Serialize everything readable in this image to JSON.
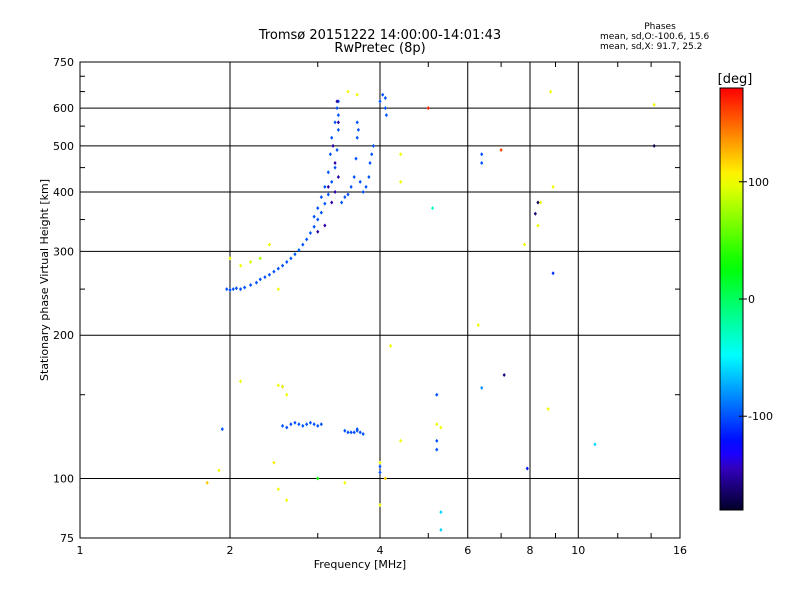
{
  "chart_data": {
    "type": "scatter",
    "title": "Tromsø 20151222 14:00:00-14:01:43",
    "subtitle": "RwPretec (8p)",
    "xlabel": "Frequency [MHz]",
    "ylabel": "Stationary phase Virtual Height [km]",
    "x_scale": "log",
    "y_scale": "log",
    "xlim": [
      1,
      16
    ],
    "ylim": [
      75,
      750
    ],
    "x_ticks": [
      "1",
      "2",
      "4",
      "6",
      "8",
      "10",
      "16"
    ],
    "x_tick_values": [
      1,
      2,
      4,
      6,
      8,
      10,
      16
    ],
    "y_ticks": [
      "75",
      "100",
      "200",
      "300",
      "400",
      "500",
      "600",
      "750"
    ],
    "y_tick_values": [
      75,
      100,
      200,
      300,
      400,
      500,
      600,
      750
    ],
    "grid": true,
    "phases_box": {
      "title": "Phases",
      "line1": "mean, sd,O:-100.6, 15.6",
      "line2": "mean, sd,X:  91.7, 25.2"
    },
    "colorbar": {
      "label": "[deg]",
      "ticks": [
        "100",
        "0",
        "-100"
      ],
      "tick_values": [
        100,
        0,
        -100
      ],
      "range": [
        -180,
        180
      ]
    },
    "series": [
      {
        "points": [
          [
            1.97,
            250,
            -100
          ],
          [
            2.0,
            249,
            -100
          ],
          [
            2.03,
            250,
            -100
          ],
          [
            2.06,
            251,
            -100
          ],
          [
            2.1,
            250,
            -100
          ],
          [
            2.14,
            252,
            -100
          ],
          [
            2.2,
            255,
            -100
          ],
          [
            2.26,
            258,
            -100
          ],
          [
            2.3,
            262,
            -100
          ],
          [
            2.35,
            265,
            -100
          ],
          [
            2.4,
            268,
            -100
          ],
          [
            2.45,
            272,
            -100
          ],
          [
            2.5,
            276,
            -100
          ],
          [
            2.55,
            280,
            -100
          ],
          [
            2.6,
            285,
            -100
          ],
          [
            2.65,
            290,
            -100
          ],
          [
            2.7,
            296,
            -100
          ],
          [
            2.75,
            302,
            -90
          ],
          [
            2.8,
            310,
            -100
          ],
          [
            2.85,
            318,
            -100
          ],
          [
            2.9,
            328,
            -100
          ],
          [
            2.95,
            338,
            -100
          ],
          [
            3.0,
            350,
            -100
          ],
          [
            3.05,
            362,
            -100
          ],
          [
            3.1,
            378,
            -100
          ],
          [
            3.15,
            395,
            -100
          ],
          [
            3.2,
            420,
            -100
          ],
          [
            3.25,
            450,
            -100
          ],
          [
            3.28,
            490,
            -100
          ],
          [
            3.3,
            540,
            -100
          ],
          [
            3.3,
            580,
            -100
          ],
          [
            3.3,
            620,
            -100
          ],
          [
            3.28,
            600,
            -100
          ],
          [
            3.25,
            560,
            -100
          ],
          [
            3.2,
            520,
            -100
          ],
          [
            3.18,
            480,
            -100
          ],
          [
            3.15,
            440,
            -100
          ],
          [
            3.1,
            410,
            -100
          ],
          [
            3.05,
            390,
            -100
          ],
          [
            3.0,
            370,
            -100
          ],
          [
            2.95,
            355,
            -100
          ],
          [
            3.35,
            380,
            -100
          ],
          [
            3.4,
            390,
            -100
          ],
          [
            3.45,
            395,
            -100
          ],
          [
            3.5,
            410,
            -100
          ],
          [
            3.55,
            430,
            -100
          ],
          [
            3.58,
            470,
            -100
          ],
          [
            3.6,
            520,
            -100
          ],
          [
            3.6,
            560,
            -100
          ],
          [
            3.62,
            540,
            -100
          ],
          [
            3.65,
            420,
            -100
          ],
          [
            3.7,
            400,
            -100
          ],
          [
            3.75,
            410,
            -100
          ],
          [
            3.8,
            430,
            -100
          ],
          [
            3.82,
            460,
            -100
          ],
          [
            3.85,
            480,
            -100
          ],
          [
            3.88,
            500,
            -100
          ],
          [
            4.0,
            620,
            -100
          ],
          [
            4.05,
            640,
            -100
          ],
          [
            4.1,
            630,
            -100
          ],
          [
            4.1,
            600,
            -100
          ],
          [
            4.12,
            580,
            -100
          ],
          [
            3.2,
            380,
            -150
          ],
          [
            3.25,
            400,
            -150
          ],
          [
            3.15,
            410,
            -150
          ],
          [
            3.3,
            430,
            -150
          ],
          [
            3.25,
            460,
            -150
          ],
          [
            3.22,
            500,
            -150
          ],
          [
            3.3,
            560,
            -150
          ],
          [
            3.28,
            620,
            -150
          ],
          [
            3.1,
            340,
            -150
          ],
          [
            3.0,
            330,
            -150
          ],
          [
            2.65,
            130,
            -100
          ],
          [
            2.7,
            131,
            -100
          ],
          [
            2.75,
            130,
            -100
          ],
          [
            2.8,
            129,
            -100
          ],
          [
            2.85,
            130,
            -100
          ],
          [
            2.9,
            131,
            -100
          ],
          [
            2.95,
            130,
            -100
          ],
          [
            3.0,
            129,
            -100
          ],
          [
            3.05,
            130,
            -100
          ],
          [
            2.55,
            129,
            -100
          ],
          [
            2.6,
            128,
            -100
          ],
          [
            3.4,
            126,
            -100
          ],
          [
            3.45,
            125,
            -100
          ],
          [
            3.5,
            125,
            -100
          ],
          [
            3.55,
            125,
            -100
          ],
          [
            3.6,
            126,
            -100
          ],
          [
            3.65,
            125,
            -100
          ],
          [
            3.7,
            124,
            -100
          ],
          [
            3.6,
            127,
            -100
          ],
          [
            1.93,
            127,
            -100
          ],
          [
            2.55,
            156,
            -140
          ],
          [
            2.1,
            280,
            100
          ],
          [
            2.2,
            285,
            90
          ],
          [
            2.3,
            290,
            80
          ],
          [
            2.4,
            310,
            100
          ],
          [
            2.0,
            290,
            100
          ],
          [
            2.5,
            250,
            100
          ],
          [
            3.45,
            650,
            100
          ],
          [
            3.6,
            640,
            100
          ],
          [
            4.4,
            480,
            100
          ],
          [
            4.4,
            420,
            100
          ],
          [
            4.2,
            190,
            100
          ],
          [
            4.4,
            120,
            100
          ],
          [
            4.0,
            108,
            100
          ],
          [
            5.2,
            130,
            100
          ],
          [
            5.3,
            128,
            100
          ],
          [
            6.3,
            210,
            100
          ],
          [
            8.3,
            340,
            100
          ],
          [
            8.4,
            380,
            100
          ],
          [
            8.8,
            650,
            100
          ],
          [
            8.9,
            410,
            100
          ],
          [
            8.7,
            140,
            100
          ],
          [
            14.2,
            610,
            100
          ],
          [
            1.9,
            104,
            100
          ],
          [
            1.8,
            98,
            120
          ],
          [
            2.1,
            160,
            100
          ],
          [
            2.5,
            157,
            100
          ],
          [
            2.6,
            150,
            100
          ],
          [
            2.6,
            90,
            100
          ],
          [
            2.5,
            95,
            100
          ],
          [
            2.45,
            108,
            110
          ],
          [
            2.55,
            156,
            100
          ],
          [
            3.4,
            98,
            100
          ],
          [
            4.0,
            88,
            100
          ],
          [
            4.0,
            103,
            -100
          ],
          [
            5.1,
            370,
            -30
          ],
          [
            5.2,
            150,
            -100
          ],
          [
            5.2,
            120,
            -100
          ],
          [
            5.2,
            115,
            -100
          ],
          [
            5.3,
            85,
            -60
          ],
          [
            5.3,
            78,
            -60
          ],
          [
            6.4,
            480,
            -100
          ],
          [
            6.4,
            460,
            -100
          ],
          [
            6.4,
            155,
            -80
          ],
          [
            7.1,
            165,
            -160
          ],
          [
            7.0,
            490,
            160
          ],
          [
            5.0,
            600,
            170
          ],
          [
            8.2,
            360,
            -160
          ],
          [
            8.3,
            380,
            -170
          ],
          [
            7.9,
            105,
            -120
          ],
          [
            8.9,
            270,
            -110
          ],
          [
            10.8,
            118,
            -60
          ],
          [
            14.2,
            500,
            -170
          ],
          [
            4.0,
            106,
            -100
          ],
          [
            3.0,
            100,
            30
          ],
          [
            4.1,
            100,
            120
          ],
          [
            7.8,
            310,
            100
          ]
        ]
      }
    ]
  }
}
